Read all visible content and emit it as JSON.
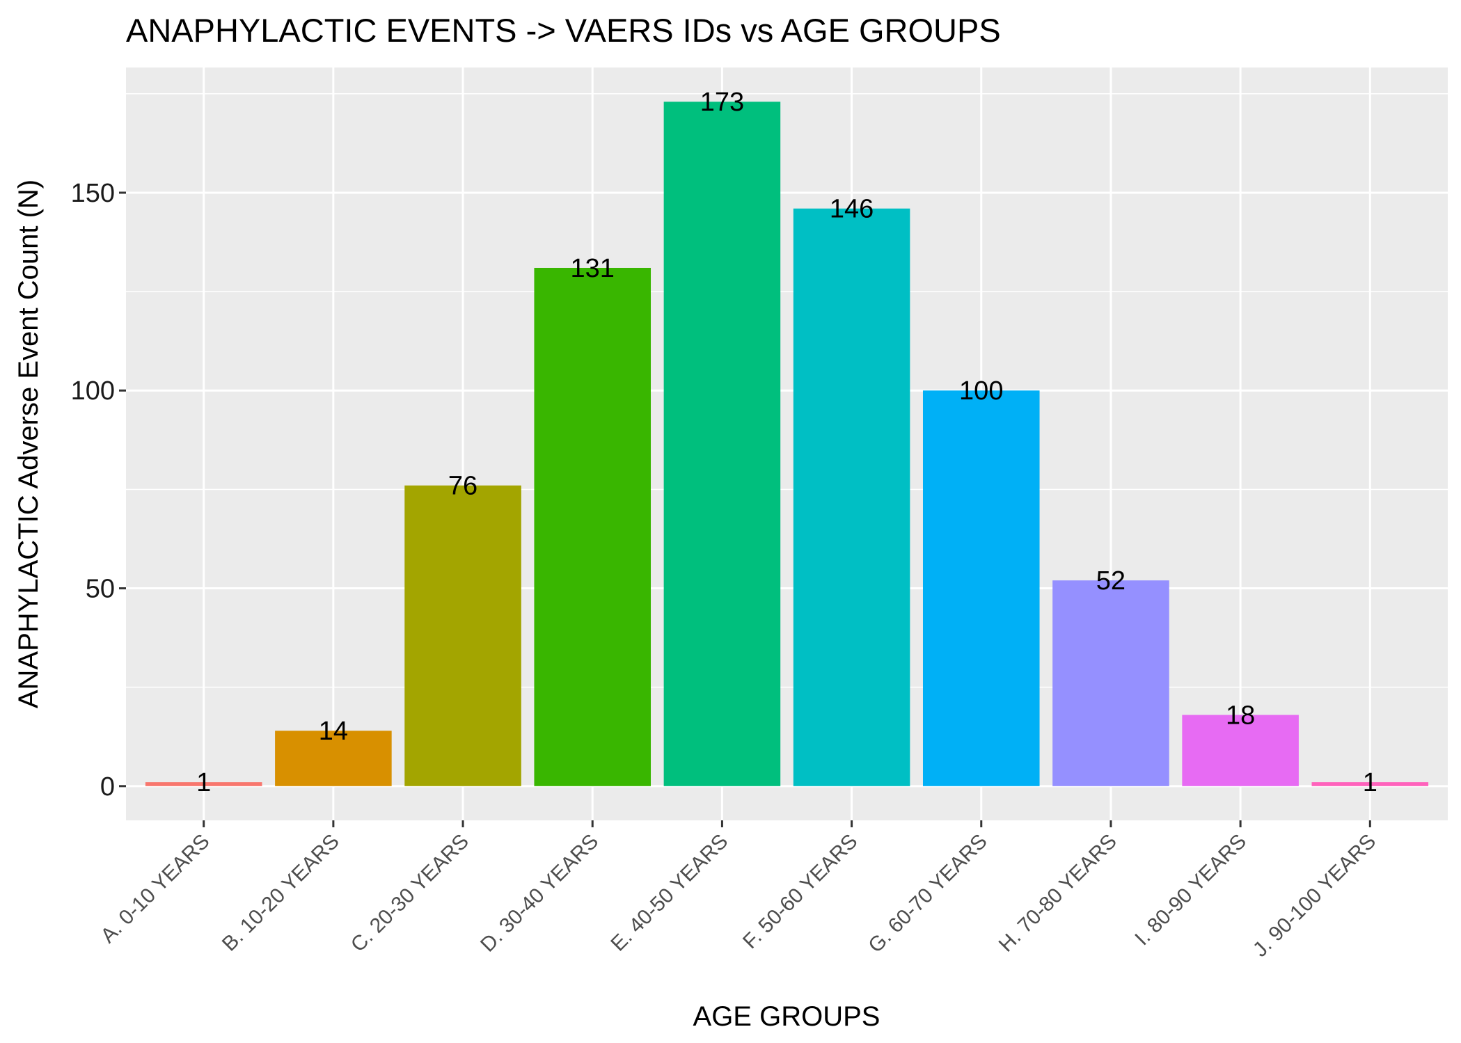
{
  "chart_data": {
    "type": "bar",
    "title": "ANAPHYLACTIC EVENTS -> VAERS IDs vs AGE GROUPS",
    "xlabel": "AGE GROUPS",
    "ylabel": "ANAPHYLACTIC Adverse Event Count (N)",
    "categories": [
      "A. 0-10 YEARS",
      "B. 10-20 YEARS",
      "C. 20-30 YEARS",
      "D. 30-40 YEARS",
      "E. 40-50 YEARS",
      "F. 50-60 YEARS",
      "G. 60-70 YEARS",
      "H. 70-80 YEARS",
      "I. 80-90 YEARS",
      "J. 90-100 YEARS"
    ],
    "values": [
      1,
      14,
      76,
      131,
      173,
      146,
      100,
      52,
      18,
      1
    ],
    "colors": [
      "#F8766D",
      "#D89000",
      "#A3A500",
      "#39B600",
      "#00BF7D",
      "#00BFC4",
      "#00B0F6",
      "#9590FF",
      "#E76BF3",
      "#FF62BC"
    ],
    "ylim": [
      -8.65,
      181.65
    ],
    "yticks": [
      0,
      50,
      100,
      150
    ],
    "grid": true,
    "panel_background": "#EBEBEB",
    "gridline_color": "#FFFFFF",
    "legend": "none"
  }
}
